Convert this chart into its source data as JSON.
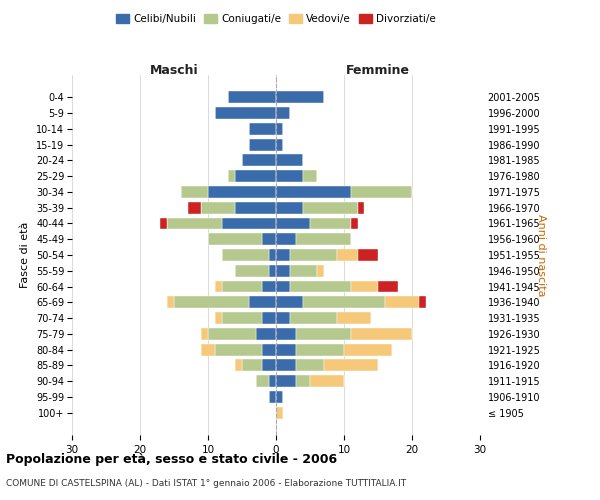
{
  "age_groups": [
    "100+",
    "95-99",
    "90-94",
    "85-89",
    "80-84",
    "75-79",
    "70-74",
    "65-69",
    "60-64",
    "55-59",
    "50-54",
    "45-49",
    "40-44",
    "35-39",
    "30-34",
    "25-29",
    "20-24",
    "15-19",
    "10-14",
    "5-9",
    "0-4"
  ],
  "birth_years": [
    "≤ 1905",
    "1906-1910",
    "1911-1915",
    "1916-1920",
    "1921-1925",
    "1926-1930",
    "1931-1935",
    "1936-1940",
    "1941-1945",
    "1946-1950",
    "1951-1955",
    "1956-1960",
    "1961-1965",
    "1966-1970",
    "1971-1975",
    "1976-1980",
    "1981-1985",
    "1986-1990",
    "1991-1995",
    "1996-2000",
    "2001-2005"
  ],
  "colors": {
    "celibi": "#3a6baa",
    "coniugati": "#b5c98e",
    "vedovi": "#f5c87a",
    "divorziati": "#cc2222"
  },
  "maschi": {
    "celibi": [
      0,
      1,
      1,
      2,
      2,
      3,
      2,
      4,
      2,
      1,
      1,
      2,
      8,
      6,
      10,
      6,
      5,
      4,
      4,
      9,
      7
    ],
    "coniugati": [
      0,
      0,
      2,
      3,
      7,
      7,
      6,
      11,
      6,
      5,
      7,
      8,
      8,
      5,
      4,
      1,
      0,
      0,
      0,
      0,
      0
    ],
    "vedovi": [
      0,
      0,
      0,
      1,
      2,
      1,
      1,
      1,
      1,
      0,
      0,
      0,
      0,
      0,
      0,
      0,
      0,
      0,
      0,
      0,
      0
    ],
    "divorziati": [
      0,
      0,
      0,
      0,
      0,
      0,
      0,
      0,
      0,
      0,
      0,
      0,
      1,
      2,
      0,
      0,
      0,
      0,
      0,
      0,
      0
    ]
  },
  "femmine": {
    "celibi": [
      0,
      1,
      3,
      3,
      3,
      3,
      2,
      4,
      2,
      2,
      2,
      3,
      5,
      4,
      11,
      4,
      4,
      1,
      1,
      2,
      7
    ],
    "coniugati": [
      0,
      0,
      2,
      4,
      7,
      8,
      7,
      12,
      9,
      4,
      7,
      8,
      6,
      8,
      9,
      2,
      0,
      0,
      0,
      0,
      0
    ],
    "vedovi": [
      1,
      0,
      5,
      8,
      7,
      9,
      5,
      5,
      4,
      1,
      3,
      0,
      0,
      0,
      0,
      0,
      0,
      0,
      0,
      0,
      0
    ],
    "divorziati": [
      0,
      0,
      0,
      0,
      0,
      0,
      0,
      1,
      3,
      0,
      3,
      0,
      1,
      1,
      0,
      0,
      0,
      0,
      0,
      0,
      0
    ]
  },
  "xlim": 30,
  "title": "Popolazione per età, sesso e stato civile - 2006",
  "subtitle": "COMUNE DI CASTELSPINA (AL) - Dati ISTAT 1° gennaio 2006 - Elaborazione TUTTITALIA.IT",
  "ylabel_left": "Fasce di età",
  "ylabel_right": "Anni di nascita",
  "legend_labels": [
    "Celibi/Nubili",
    "Coniugati/e",
    "Vedovi/e",
    "Divorziati/e"
  ]
}
